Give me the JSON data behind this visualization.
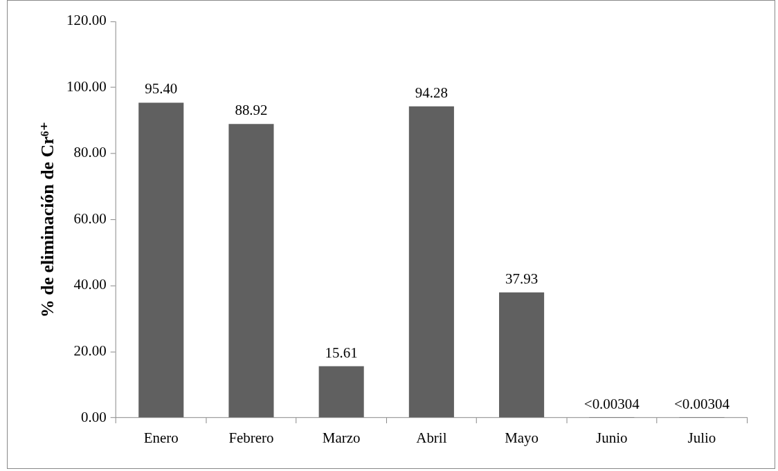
{
  "chart_data": {
    "type": "bar",
    "ylabel": "% de eliminación de Cr⁶⁺",
    "categories": [
      "Enero",
      "Febrero",
      "Marzo",
      "Abril",
      "Mayo",
      "Junio",
      "Julio"
    ],
    "values": [
      95.4,
      88.92,
      15.61,
      94.28,
      37.93,
      0.00304,
      0.00304
    ],
    "value_labels": [
      "95.40",
      "88.92",
      "15.61",
      "94.28",
      "37.93",
      "<0.00304",
      "<0.00304"
    ],
    "color": "#606060",
    "ylim": [
      0,
      120
    ],
    "yticks": [
      {
        "value": 0,
        "label": "0.00"
      },
      {
        "value": 20,
        "label": "20.00"
      },
      {
        "value": 40,
        "label": "40.00"
      },
      {
        "value": 60,
        "label": "60.00"
      },
      {
        "value": 80,
        "label": "80.00"
      },
      {
        "value": 100,
        "label": "100.00"
      },
      {
        "value": 120,
        "label": "120.00"
      }
    ]
  }
}
